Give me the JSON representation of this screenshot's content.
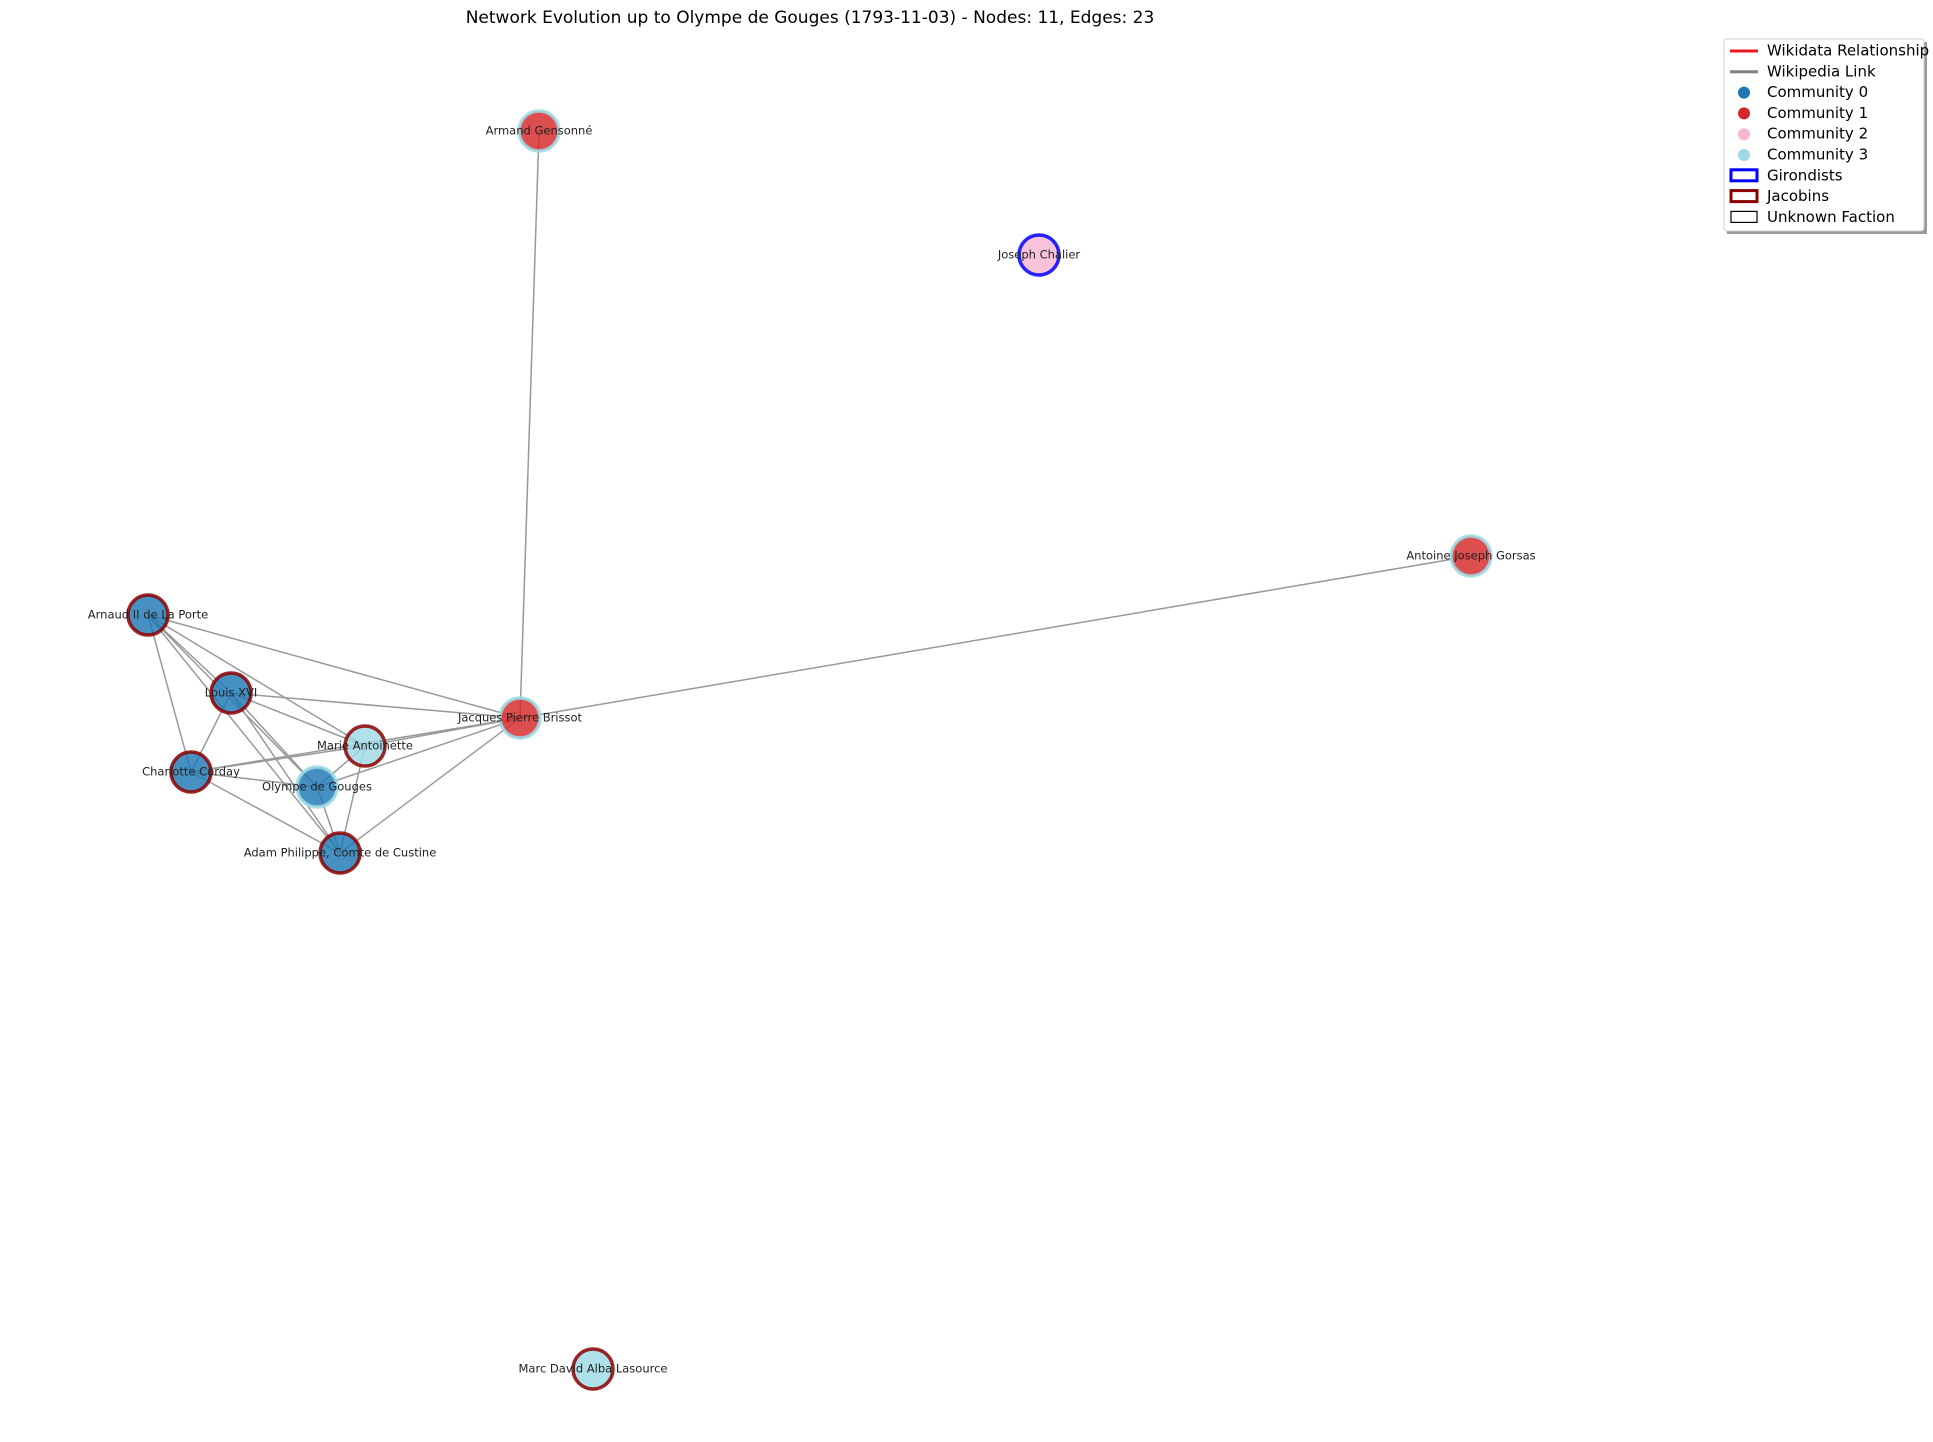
{
  "title": "Network Evolution up to Olympe de Gouges (1793-11-03) - Nodes: 11, Edges: 23",
  "nodes": [
    {
      "label": "Armand Gensonné",
      "community": 1,
      "faction": 5
    },
    {
      "label": "Joseph Chalier",
      "community": 2,
      "faction": 6
    },
    {
      "label": "Antoine Joseph Gorsas",
      "community": 1,
      "faction": 5
    },
    {
      "label": "Arnaud II de La Porte",
      "community": 0,
      "faction": 7
    },
    {
      "label": "Louis XVI",
      "community": 0,
      "faction": 7
    },
    {
      "label": "Jacques Pierre Brissot",
      "community": 1,
      "faction": 5
    },
    {
      "label": "Marie Antoinette",
      "community": 3,
      "faction": 7
    },
    {
      "label": "Charlotte Corday",
      "community": 0,
      "faction": 7
    },
    {
      "label": "Olympe de Gouges",
      "community": 0,
      "faction": 5
    },
    {
      "label": "Adam Philippe, Comte de Custine",
      "community": 0,
      "faction": 7
    },
    {
      "label": "Marc David Alba Lasource",
      "community": 3,
      "faction": 7
    }
  ],
  "edges": [
    [
      0,
      5
    ],
    [
      2,
      5
    ],
    [
      3,
      5
    ],
    [
      3,
      4
    ],
    [
      3,
      7
    ],
    [
      3,
      6
    ],
    [
      3,
      8
    ],
    [
      3,
      9
    ],
    [
      4,
      5
    ],
    [
      4,
      6
    ],
    [
      4,
      7
    ],
    [
      4,
      8
    ],
    [
      4,
      9
    ],
    [
      6,
      5
    ],
    [
      6,
      7
    ],
    [
      6,
      8
    ],
    [
      6,
      9
    ],
    [
      7,
      5
    ],
    [
      7,
      8
    ],
    [
      7,
      9
    ],
    [
      8,
      5
    ],
    [
      8,
      9
    ],
    [
      9,
      5
    ]
  ],
  "legend": {
    "items": [
      {
        "label": "Wikidata Relationship",
        "kind": "line",
        "color": "#e41a1c"
      },
      {
        "label": "Wikipedia Link",
        "kind": "line",
        "color": "#808080"
      },
      {
        "label": "Community 0",
        "kind": "dot",
        "color": "#1f77b4"
      },
      {
        "label": "Community 1",
        "kind": "dot",
        "color": "#d62728"
      },
      {
        "label": "Community 2",
        "kind": "dot",
        "color": "#f7b6d2"
      },
      {
        "label": "Community 3",
        "kind": "dot",
        "color": "#9edae5"
      },
      {
        "label": "Girondists",
        "kind": "box",
        "color": "#0000ff"
      },
      {
        "label": "Jacobins",
        "kind": "box",
        "color": "#8b0000"
      },
      {
        "label": "Unknown Faction",
        "kind": "box",
        "color": "#000000"
      }
    ]
  }
}
